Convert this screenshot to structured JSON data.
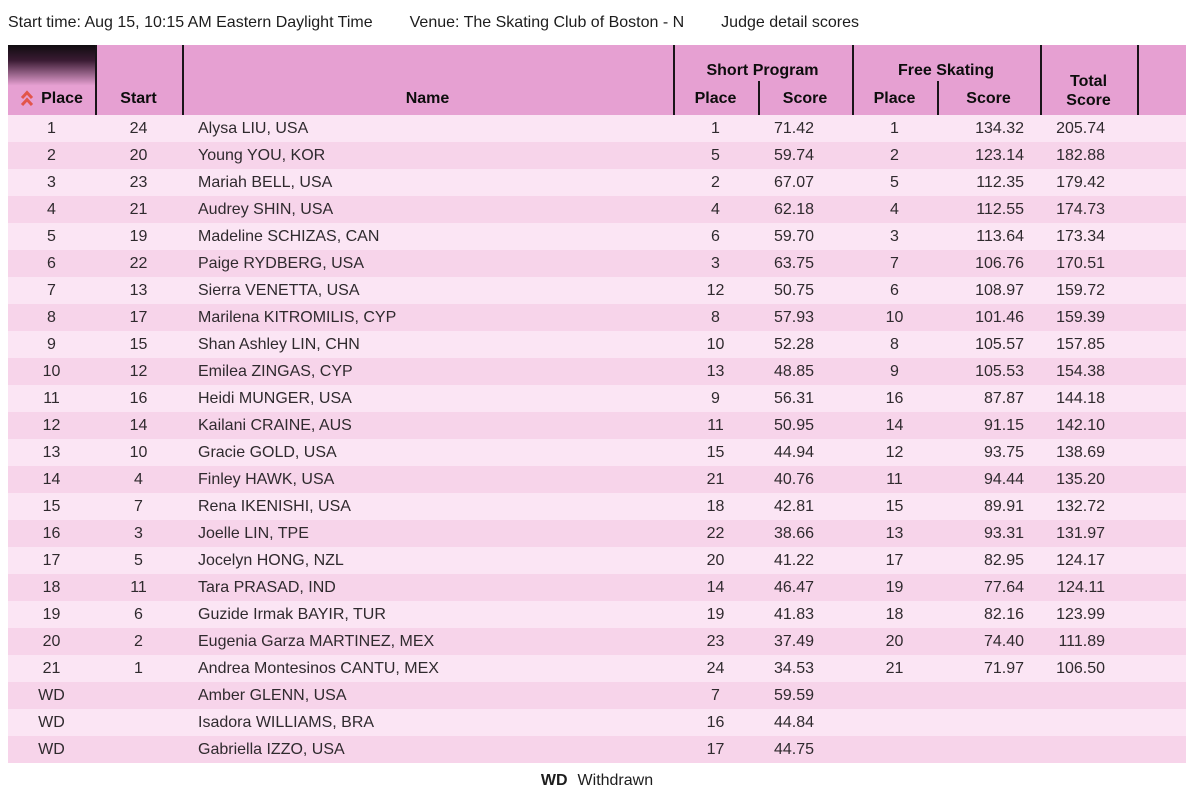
{
  "info_bar": {
    "start_time": "Start time: Aug 15, 10:15 AM Eastern Daylight Time",
    "venue": "Venue: The Skating Club of Boston - N",
    "judge_link": "Judge detail scores"
  },
  "table": {
    "headers": {
      "place": "Place",
      "start": "Start",
      "name": "Name",
      "short_program": "Short Program",
      "free_skating": "Free Skating",
      "sp_place": "Place",
      "sp_score": "Score",
      "fs_place": "Place",
      "fs_score": "Score",
      "total_line1": "Total",
      "total_line2": "Score"
    },
    "rows": [
      {
        "place": "1",
        "start": "24",
        "name": "Alysa LIU, USA",
        "sp_place": "1",
        "sp_score": "71.42",
        "fs_place": "1",
        "fs_score": "134.32",
        "total": "205.74"
      },
      {
        "place": "2",
        "start": "20",
        "name": "Young YOU, KOR",
        "sp_place": "5",
        "sp_score": "59.74",
        "fs_place": "2",
        "fs_score": "123.14",
        "total": "182.88"
      },
      {
        "place": "3",
        "start": "23",
        "name": "Mariah BELL, USA",
        "sp_place": "2",
        "sp_score": "67.07",
        "fs_place": "5",
        "fs_score": "112.35",
        "total": "179.42"
      },
      {
        "place": "4",
        "start": "21",
        "name": "Audrey SHIN, USA",
        "sp_place": "4",
        "sp_score": "62.18",
        "fs_place": "4",
        "fs_score": "112.55",
        "total": "174.73"
      },
      {
        "place": "5",
        "start": "19",
        "name": "Madeline SCHIZAS, CAN",
        "sp_place": "6",
        "sp_score": "59.70",
        "fs_place": "3",
        "fs_score": "113.64",
        "total": "173.34"
      },
      {
        "place": "6",
        "start": "22",
        "name": "Paige RYDBERG, USA",
        "sp_place": "3",
        "sp_score": "63.75",
        "fs_place": "7",
        "fs_score": "106.76",
        "total": "170.51"
      },
      {
        "place": "7",
        "start": "13",
        "name": "Sierra VENETTA, USA",
        "sp_place": "12",
        "sp_score": "50.75",
        "fs_place": "6",
        "fs_score": "108.97",
        "total": "159.72"
      },
      {
        "place": "8",
        "start": "17",
        "name": "Marilena KITROMILIS, CYP",
        "sp_place": "8",
        "sp_score": "57.93",
        "fs_place": "10",
        "fs_score": "101.46",
        "total": "159.39"
      },
      {
        "place": "9",
        "start": "15",
        "name": "Shan Ashley LIN, CHN",
        "sp_place": "10",
        "sp_score": "52.28",
        "fs_place": "8",
        "fs_score": "105.57",
        "total": "157.85"
      },
      {
        "place": "10",
        "start": "12",
        "name": "Emilea ZINGAS, CYP",
        "sp_place": "13",
        "sp_score": "48.85",
        "fs_place": "9",
        "fs_score": "105.53",
        "total": "154.38"
      },
      {
        "place": "11",
        "start": "16",
        "name": "Heidi MUNGER, USA",
        "sp_place": "9",
        "sp_score": "56.31",
        "fs_place": "16",
        "fs_score": "87.87",
        "total": "144.18"
      },
      {
        "place": "12",
        "start": "14",
        "name": "Kailani CRAINE, AUS",
        "sp_place": "11",
        "sp_score": "50.95",
        "fs_place": "14",
        "fs_score": "91.15",
        "total": "142.10"
      },
      {
        "place": "13",
        "start": "10",
        "name": "Gracie GOLD, USA",
        "sp_place": "15",
        "sp_score": "44.94",
        "fs_place": "12",
        "fs_score": "93.75",
        "total": "138.69"
      },
      {
        "place": "14",
        "start": "4",
        "name": "Finley HAWK, USA",
        "sp_place": "21",
        "sp_score": "40.76",
        "fs_place": "11",
        "fs_score": "94.44",
        "total": "135.20"
      },
      {
        "place": "15",
        "start": "7",
        "name": "Rena IKENISHI, USA",
        "sp_place": "18",
        "sp_score": "42.81",
        "fs_place": "15",
        "fs_score": "89.91",
        "total": "132.72"
      },
      {
        "place": "16",
        "start": "3",
        "name": "Joelle LIN, TPE",
        "sp_place": "22",
        "sp_score": "38.66",
        "fs_place": "13",
        "fs_score": "93.31",
        "total": "131.97"
      },
      {
        "place": "17",
        "start": "5",
        "name": "Jocelyn HONG, NZL",
        "sp_place": "20",
        "sp_score": "41.22",
        "fs_place": "17",
        "fs_score": "82.95",
        "total": "124.17"
      },
      {
        "place": "18",
        "start": "11",
        "name": "Tara PRASAD, IND",
        "sp_place": "14",
        "sp_score": "46.47",
        "fs_place": "19",
        "fs_score": "77.64",
        "total": "124.11"
      },
      {
        "place": "19",
        "start": "6",
        "name": "Guzide Irmak BAYIR, TUR",
        "sp_place": "19",
        "sp_score": "41.83",
        "fs_place": "18",
        "fs_score": "82.16",
        "total": "123.99"
      },
      {
        "place": "20",
        "start": "2",
        "name": "Eugenia Garza MARTINEZ, MEX",
        "sp_place": "23",
        "sp_score": "37.49",
        "fs_place": "20",
        "fs_score": "74.40",
        "total": "111.89"
      },
      {
        "place": "21",
        "start": "1",
        "name": "Andrea Montesinos CANTU, MEX",
        "sp_place": "24",
        "sp_score": "34.53",
        "fs_place": "21",
        "fs_score": "71.97",
        "total": "106.50"
      },
      {
        "place": "WD",
        "start": "",
        "name": "Amber GLENN, USA",
        "sp_place": "7",
        "sp_score": "59.59",
        "fs_place": "",
        "fs_score": "",
        "total": ""
      },
      {
        "place": "WD",
        "start": "",
        "name": "Isadora WILLIAMS, BRA",
        "sp_place": "16",
        "sp_score": "44.84",
        "fs_place": "",
        "fs_score": "",
        "total": ""
      },
      {
        "place": "WD",
        "start": "",
        "name": "Gabriella IZZO, USA",
        "sp_place": "17",
        "sp_score": "44.75",
        "fs_place": "",
        "fs_score": "",
        "total": ""
      }
    ]
  },
  "footer": {
    "wd_abbr": "WD",
    "wd_meaning": "Withdrawn"
  },
  "colors": {
    "header_pink": "#e6a0d2",
    "row_light": "#fbe5f4",
    "row_dark": "#f7d4ea",
    "divider": "#191419",
    "sort_icon_red": "#e2554a"
  }
}
